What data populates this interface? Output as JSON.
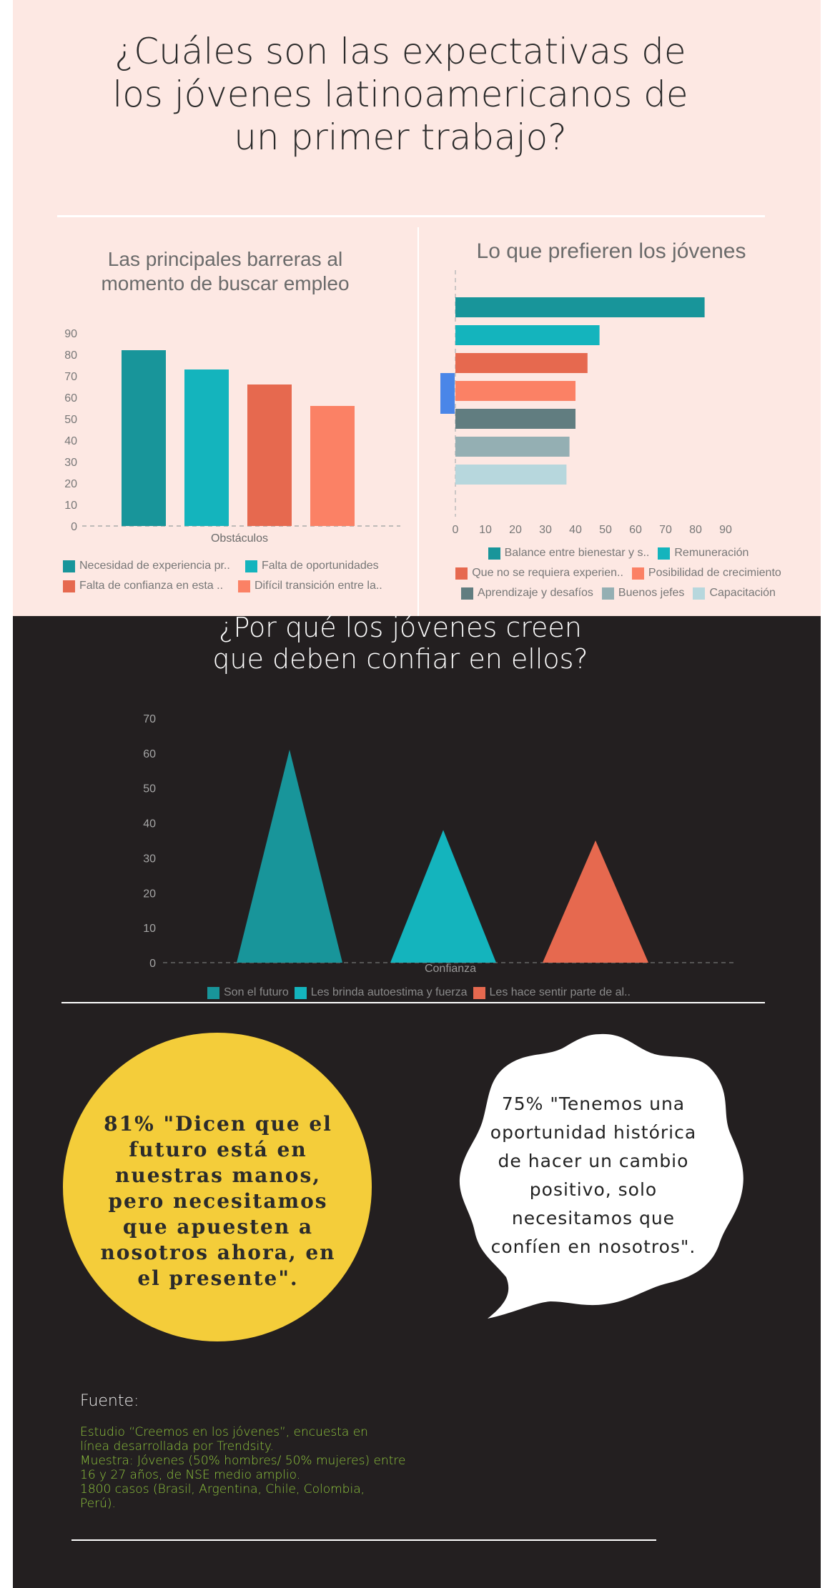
{
  "title": "¿Cuáles son las expectativas de\nlos jóvenes latinoamericanos de\nun primer trabajo?",
  "colors": {
    "teal_dark": "#18959a",
    "teal": "#14b4bd",
    "coral": "#e6694f",
    "salmon": "#fb8165",
    "slate": "#617d80",
    "gray_blue": "#94afb3",
    "light_blue": "#b7d7dd",
    "highlight_blue": "#4a86e8",
    "yellow": "#f4cd3a",
    "green_text": "#8fc63d",
    "dark_bg": "#231f20",
    "pink_bg": "#fde8e3"
  },
  "chart_data": [
    {
      "type": "bar",
      "title": "Las principales barreras al\nmomento de buscar empleo",
      "xlabel": "Obstáculos",
      "ylabel": "",
      "ylim": [
        0,
        90
      ],
      "yticks": [
        0,
        10,
        20,
        30,
        40,
        50,
        60,
        70,
        80,
        90
      ],
      "grid": false,
      "legend_position": "bottom",
      "series": [
        {
          "name": "Necesidad de experiencia pr..",
          "value": 82,
          "color": "#18959a"
        },
        {
          "name": "Falta de oportunidades",
          "value": 73,
          "color": "#14b4bd"
        },
        {
          "name": "Falta de confianza en esta ..",
          "value": 66,
          "color": "#e6694f"
        },
        {
          "name": "Difícil transición entre la..",
          "value": 56,
          "color": "#fb8165"
        }
      ]
    },
    {
      "type": "bar",
      "orientation": "horizontal",
      "title": "Lo que prefieren los jóvenes",
      "xlabel": "",
      "ylabel": "",
      "xlim": [
        0,
        90
      ],
      "xticks": [
        0,
        10,
        20,
        30,
        40,
        50,
        60,
        70,
        80,
        90
      ],
      "grid": false,
      "legend_position": "bottom",
      "series": [
        {
          "name": "Balance entre bienestar y s..",
          "value": 83,
          "color": "#18959a"
        },
        {
          "name": "Remuneración",
          "value": 48,
          "color": "#14b4bd"
        },
        {
          "name": "Que no se requiera experien..",
          "value": 44,
          "color": "#e6694f"
        },
        {
          "name": "Posibilidad de crecimiento",
          "value": 40,
          "color": "#fb8165"
        },
        {
          "name": "Aprendizaje y desafíos",
          "value": 40,
          "color": "#617d80"
        },
        {
          "name": "Buenos jefes",
          "value": 38,
          "color": "#94afb3"
        },
        {
          "name": "Capacitación",
          "value": 37,
          "color": "#b7d7dd"
        }
      ]
    },
    {
      "type": "bar",
      "style": "triangle",
      "title": "¿Por qué los jóvenes creen\nque deben confiar en ellos?",
      "xlabel": "Confianza",
      "ylabel": "",
      "ylim": [
        0,
        70
      ],
      "yticks": [
        0,
        10,
        20,
        30,
        40,
        50,
        60,
        70
      ],
      "grid": false,
      "legend_position": "bottom",
      "series": [
        {
          "name": "Son el futuro",
          "value": 61,
          "color": "#18959a"
        },
        {
          "name": "Les brinda autoestima y fuerza",
          "value": 38,
          "color": "#14b4bd"
        },
        {
          "name": "Les hace sentir parte de al..",
          "value": 35,
          "color": "#e6694f"
        }
      ]
    }
  ],
  "quotes": {
    "yellow": "81% \"Dicen que el futuro está en nuestras manos, pero necesitamos que apuesten a nosotros ahora, en el presente\".",
    "bubble": "75% \"Tenemos una oportunidad histórica de hacer un cambio positivo, solo necesitamos que confíen en nosotros\"."
  },
  "source": {
    "label": "Fuente:",
    "text": "   Estudio “Creemos en los jóvenes”, encuesta en\nlínea desarrollada por Trendsity.\nMuestra: Jóvenes (50% hombres/ 50% mujeres) entre\n16 y 27 años, de NSE medio amplio.\n1800 casos (Brasil, Argentina, Chile, Colombia,\nPerú)."
  }
}
